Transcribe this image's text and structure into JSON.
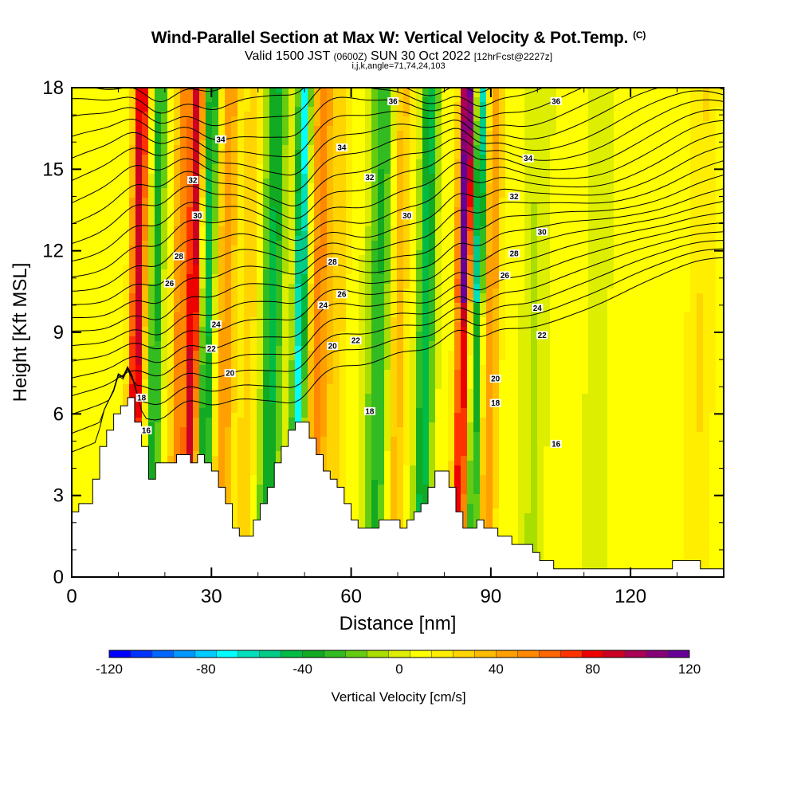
{
  "title": {
    "main": "Wind-Parallel Section at Max W: Vertical Velocity & Pot.Temp.",
    "mark": "(C)",
    "valid_prefix": "Valid 1500 JST",
    "valid_utc": "(0600Z)",
    "valid_date": "SUN 30 Oct 2022",
    "valid_fcst": "[12hrFcst@2227z]",
    "params": "i,j,k,angle=71,74,24,103"
  },
  "colors": {
    "terrain": "#ffffff",
    "axis": "#000000",
    "contour": "#000000",
    "palette": [
      "#0000ff",
      "#0033ff",
      "#0066ff",
      "#0099ff",
      "#00ccff",
      "#00ffff",
      "#00e0bb",
      "#00cc88",
      "#00bb44",
      "#11aa22",
      "#33bb22",
      "#66cc11",
      "#aadd00",
      "#ddee00",
      "#ffff00",
      "#ffee00",
      "#ffd400",
      "#ffbb00",
      "#ffa000",
      "#ff8800",
      "#ff6600",
      "#ff3300",
      "#ee0000",
      "#cc0022",
      "#aa0055",
      "#880077",
      "#660099"
    ]
  },
  "chart_data": {
    "type": "heatmap",
    "xlabel": "Distance [nm]",
    "ylabel": "Height [Kft MSL]",
    "xlim": [
      0,
      140
    ],
    "ylim": [
      0,
      18
    ],
    "xticks": [
      0,
      30,
      60,
      90,
      120
    ],
    "yticks": [
      0,
      3,
      6,
      9,
      12,
      15,
      18
    ],
    "colorbar": {
      "label": "Vertical Velocity [cm/s]",
      "range": [
        -120,
        120
      ],
      "tick_values": [
        -120,
        -80,
        -40,
        0,
        40,
        80,
        120
      ],
      "tick_labels": [
        "-120",
        "-80",
        "-40",
        "0",
        "40",
        "80",
        "120"
      ]
    },
    "bands": [
      {
        "x": 14,
        "w": 1.6,
        "v": 85
      },
      {
        "x": 18,
        "w": 1.4,
        "v": -45
      },
      {
        "x": 23,
        "w": 1.5,
        "v": 45
      },
      {
        "x": 26,
        "w": 1.6,
        "v": 85
      },
      {
        "x": 29,
        "w": 1.6,
        "v": -55
      },
      {
        "x": 33,
        "w": 2.0,
        "v": 40
      },
      {
        "x": 38,
        "w": 2.0,
        "v": 20
      },
      {
        "x": 43,
        "w": 2.2,
        "v": -50
      },
      {
        "x": 49,
        "w": 1.4,
        "v": -80
      },
      {
        "x": 53,
        "w": 2.2,
        "v": 45
      },
      {
        "x": 57,
        "w": 2.0,
        "v": 20
      },
      {
        "x": 66,
        "w": 2.6,
        "v": -40
      },
      {
        "x": 70,
        "w": 2.0,
        "v": 30
      },
      {
        "x": 76,
        "w": 1.8,
        "v": -55
      },
      {
        "x": 84,
        "w": 1.5,
        "v": 120
      },
      {
        "x": 87,
        "w": 1.3,
        "v": -75
      },
      {
        "x": 90,
        "w": 1.8,
        "v": 40
      },
      {
        "x": 100,
        "w": 3.0,
        "v": -15
      },
      {
        "x": 113,
        "w": 3.0,
        "v": -15
      },
      {
        "x": 135,
        "w": 2.5,
        "v": 15
      }
    ],
    "isentrope_labels": [
      {
        "x": 69,
        "y": 17.5,
        "text": "36"
      },
      {
        "x": 104,
        "y": 17.5,
        "text": "36"
      },
      {
        "x": 32,
        "y": 16.1,
        "text": "34"
      },
      {
        "x": 58,
        "y": 15.8,
        "text": "34"
      },
      {
        "x": 98,
        "y": 15.4,
        "text": "34"
      },
      {
        "x": 26,
        "y": 14.6,
        "text": "32"
      },
      {
        "x": 64,
        "y": 14.7,
        "text": "32"
      },
      {
        "x": 95,
        "y": 14.0,
        "text": "32"
      },
      {
        "x": 27,
        "y": 13.3,
        "text": "30"
      },
      {
        "x": 72,
        "y": 13.3,
        "text": "30"
      },
      {
        "x": 101,
        "y": 12.7,
        "text": "30"
      },
      {
        "x": 23,
        "y": 11.8,
        "text": "28"
      },
      {
        "x": 56,
        "y": 11.6,
        "text": "28"
      },
      {
        "x": 95,
        "y": 11.9,
        "text": "28"
      },
      {
        "x": 21,
        "y": 10.8,
        "text": "26"
      },
      {
        "x": 58,
        "y": 10.4,
        "text": "26"
      },
      {
        "x": 93,
        "y": 11.1,
        "text": "26"
      },
      {
        "x": 54,
        "y": 10.0,
        "text": "24"
      },
      {
        "x": 31,
        "y": 9.3,
        "text": "24"
      },
      {
        "x": 100,
        "y": 9.9,
        "text": "24"
      },
      {
        "x": 61,
        "y": 8.7,
        "text": "22"
      },
      {
        "x": 30,
        "y": 8.4,
        "text": "22"
      },
      {
        "x": 101,
        "y": 8.9,
        "text": "22"
      },
      {
        "x": 56,
        "y": 8.5,
        "text": "20"
      },
      {
        "x": 34,
        "y": 7.5,
        "text": "20"
      },
      {
        "x": 91,
        "y": 7.3,
        "text": "20"
      },
      {
        "x": 15,
        "y": 6.6,
        "text": "18"
      },
      {
        "x": 64,
        "y": 6.1,
        "text": "18"
      },
      {
        "x": 91,
        "y": 6.4,
        "text": "18"
      },
      {
        "x": 16,
        "y": 5.4,
        "text": "16"
      },
      {
        "x": 104,
        "y": 4.9,
        "text": "16"
      }
    ]
  }
}
